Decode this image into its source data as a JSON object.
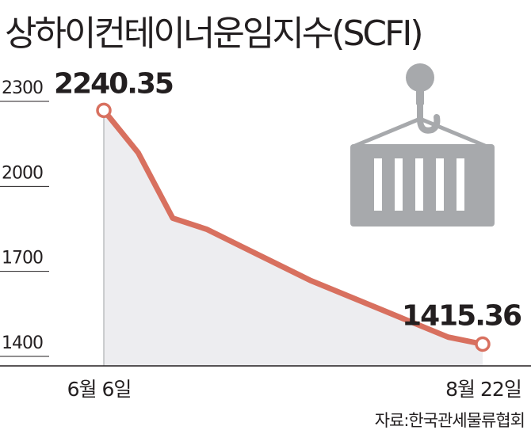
{
  "colors": {
    "line": "#d8705f",
    "area": "#ededf0",
    "axis": "#231f20",
    "icon": "#a7a9ac"
  },
  "icons": [
    "crane-hook-icon",
    "shipping-container-icon"
  ],
  "chart_data": {
    "type": "line",
    "title": "상하이컨테이너운임지수(SCFI)",
    "source": "자료:한국관세물류협회",
    "xlabel": "",
    "ylabel": "",
    "ylim": [
      1400,
      2300
    ],
    "yticks": [
      "2300",
      "2000",
      "1700",
      "1400"
    ],
    "xtick_labels": [
      "6월 6일",
      "8월 22일"
    ],
    "grid": false,
    "series": [
      {
        "x": [
          "6월 6일",
          "6월 13일",
          "6월 20일",
          "6월 27일",
          "7월 4일",
          "7월 11일",
          "7월 18일",
          "7월 25일",
          "8월 1일",
          "8월 8일",
          "8월 15일",
          "8월 22일"
        ],
        "values": [
          2240.35,
          2090,
          1860,
          1820,
          1760,
          1700,
          1640,
          1590,
          1540,
          1490,
          1440,
          1415.36
        ]
      }
    ],
    "data_labels": [
      {
        "index": 0,
        "text": "2240.35"
      },
      {
        "index": 11,
        "text": "1415.36"
      }
    ]
  }
}
